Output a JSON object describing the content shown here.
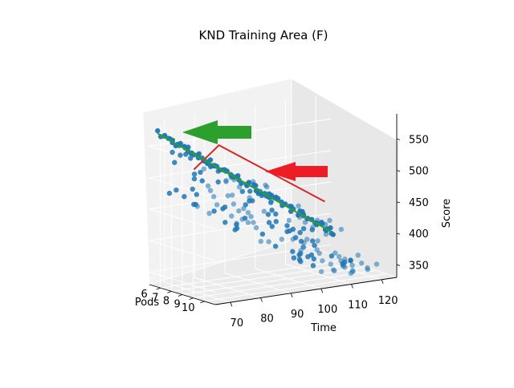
{
  "chart_data": {
    "type": "scatter",
    "title": "KND Training Area (F)",
    "xlabel": "Time",
    "ylabel": "Pods",
    "zlabel": "Score",
    "x_ticks": [
      "70",
      "80",
      "90",
      "100",
      "110",
      "120"
    ],
    "y_ticks": [
      "6",
      "7",
      "8",
      "9",
      "10"
    ],
    "z_ticks": [
      "350",
      "400",
      "450",
      "500",
      "550"
    ],
    "xlim": [
      65,
      125
    ],
    "ylim": [
      5,
      11
    ],
    "zlim": [
      330,
      590
    ],
    "grid": true,
    "point_color": "#1f77b4",
    "series": [
      {
        "line_color": "#2ca02c",
        "arrow_color": "#2ca02c"
      },
      {
        "line_color": "#d62728",
        "arrow_color": "#ee1c25"
      }
    ],
    "green_line_ends": [
      {
        "x": 67,
        "y": 5.2,
        "z": 570
      },
      {
        "x": 123,
        "y": 5.6,
        "z": 375
      }
    ],
    "red_line_ends": [
      {
        "x": 67,
        "y": 8.5,
        "z": 530
      },
      {
        "x": 88,
        "y": 5.0,
        "z": 535
      },
      {
        "x": 123,
        "y": 5.0,
        "z": 420
      }
    ]
  }
}
